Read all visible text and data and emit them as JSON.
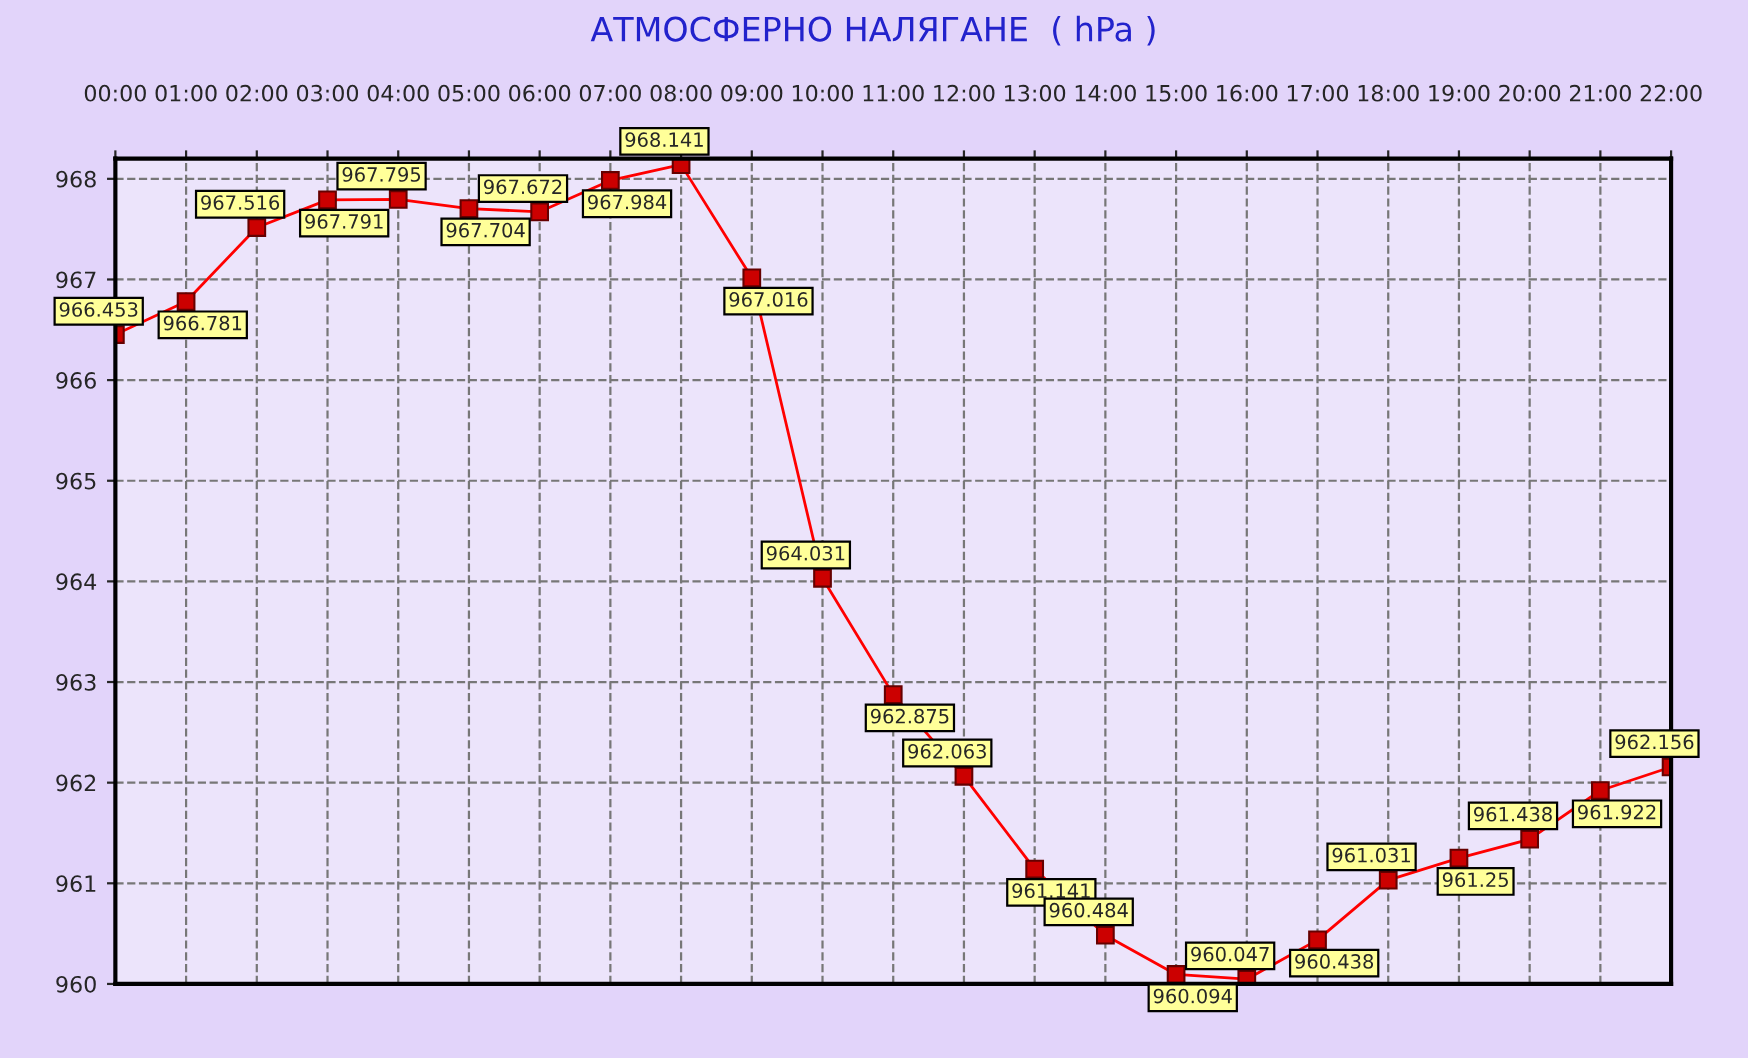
{
  "chart_data": {
    "type": "line",
    "title": "АТМОСФЕРНО НАЛЯГАНЕ  ( hPa )",
    "x": [
      0,
      1,
      2,
      3,
      4,
      5,
      6,
      7,
      8,
      9,
      10,
      11,
      12,
      13,
      14,
      15,
      16,
      17,
      18,
      19,
      20,
      21,
      22
    ],
    "series": [
      {
        "color": "#ff0000",
        "values": [
          966.453,
          966.781,
          967.516,
          967.791,
          967.795,
          967.704,
          967.672,
          967.984,
          968.141,
          967.016,
          964.031,
          962.875,
          962.063,
          961.141,
          960.484,
          960.094,
          960.047,
          960.438,
          961.031,
          961.25,
          961.438,
          961.922,
          962.156
        ]
      }
    ],
    "xlim": [
      0,
      22
    ],
    "xticks": [
      {
        "value": 0,
        "label": "00:00"
      },
      {
        "value": 1,
        "label": "01:00"
      },
      {
        "value": 2,
        "label": "02:00"
      },
      {
        "value": 3,
        "label": "03:00"
      },
      {
        "value": 4,
        "label": "04:00"
      },
      {
        "value": 5,
        "label": "05:00"
      },
      {
        "value": 6,
        "label": "06:00"
      },
      {
        "value": 7,
        "label": "07:00"
      },
      {
        "value": 8,
        "label": "08:00"
      },
      {
        "value": 9,
        "label": "09:00"
      },
      {
        "value": 10,
        "label": "10:00"
      },
      {
        "value": 11,
        "label": "11:00"
      },
      {
        "value": 12,
        "label": "12:00"
      },
      {
        "value": 13,
        "label": "13:00"
      },
      {
        "value": 14,
        "label": "14:00"
      },
      {
        "value": 15,
        "label": "15:00"
      },
      {
        "value": 16,
        "label": "16:00"
      },
      {
        "value": 17,
        "label": "17:00"
      },
      {
        "value": 18,
        "label": "18:00"
      },
      {
        "value": 19,
        "label": "19:00"
      },
      {
        "value": 20,
        "label": "20:00"
      },
      {
        "value": 21,
        "label": "21:00"
      },
      {
        "value": 22,
        "label": "22:00"
      }
    ],
    "ylim": [
      960,
      968.2
    ],
    "yticks": [
      960,
      961,
      962,
      963,
      964,
      965,
      966,
      967,
      968
    ],
    "grid": true,
    "marker": "square",
    "line_style": "solid",
    "data_labels": true
  }
}
